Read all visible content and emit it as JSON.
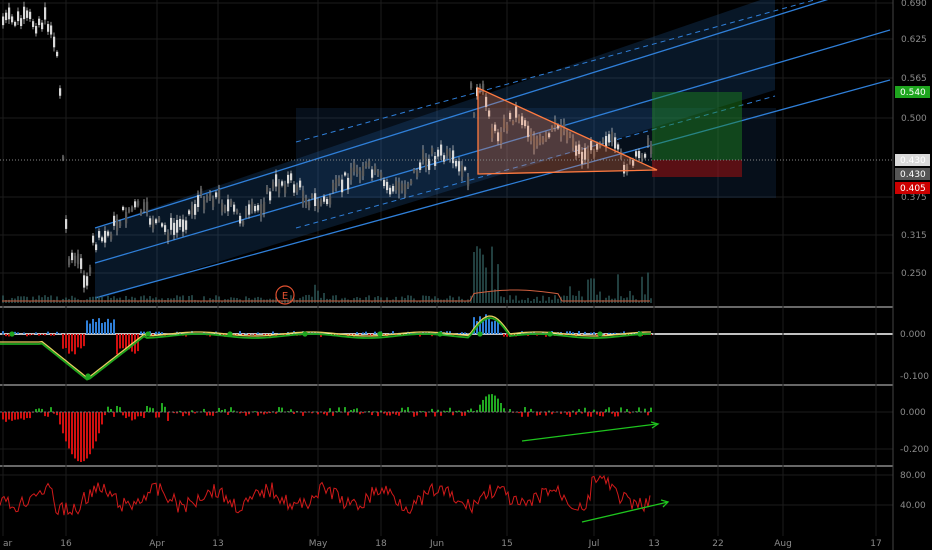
{
  "chart_data": {
    "type": "candlestick",
    "main_pane": {
      "yticks": [
        "0.690",
        "0.625",
        "0.565",
        "0.500",
        "0.430",
        "0.375",
        "0.315",
        "0.250"
      ],
      "price_badges": [
        {
          "label": "0.540",
          "value": 0.54,
          "color": "#1ea51e"
        },
        {
          "label": "0.430",
          "value": 0.43,
          "color": "#d9d9d9"
        },
        {
          "label": "0.430",
          "value": 0.43,
          "color": "#555555"
        },
        {
          "label": "0.405",
          "value": 0.405,
          "color": "#cc0000"
        }
      ],
      "event_marker": "E",
      "channel_color": "#2f7fd8",
      "triangle_color": "#ff7a40",
      "long_position": {
        "target": 0.54,
        "entry": 0.43,
        "stop": 0.405
      }
    },
    "macd_pane": {
      "yticks": [
        "0.000",
        "-0.100"
      ]
    },
    "histogram_pane": {
      "yticks": [
        "0.000",
        "-0.200"
      ]
    },
    "rsi_pane": {
      "yticks": [
        "80.00",
        "40.00"
      ]
    },
    "xticks": [
      "ar",
      "16",
      "Apr",
      "13",
      "May",
      "18",
      "Jun",
      "15",
      "Jul",
      "13",
      "22",
      "Aug",
      "17"
    ],
    "colors": {
      "up": "#c8c8c8",
      "grid": "#1c1c1c",
      "rsi": "#d11a1a",
      "macd": "#1ea51e",
      "signal": "#e8d060",
      "hist_pos": "#21a821",
      "hist_neg": "#d01010"
    }
  }
}
